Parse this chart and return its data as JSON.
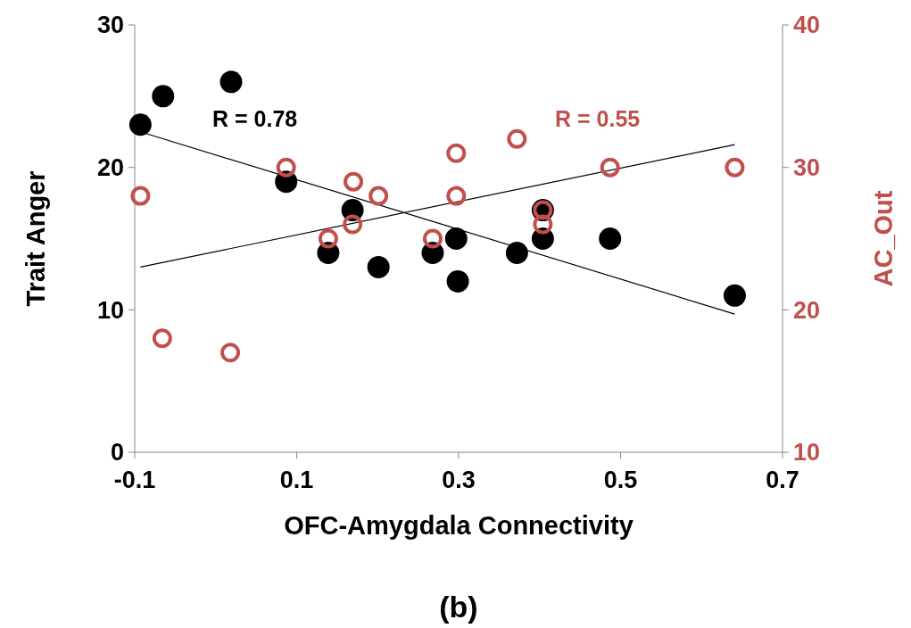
{
  "chart_data": {
    "type": "scatter",
    "xlabel": "OFC-Amygdala Connectivity",
    "ylabel": "Trait Anger",
    "y2label": "AC_Out",
    "xlim": [
      -0.1,
      0.7
    ],
    "xticks": [
      -0.1,
      0.1,
      0.3,
      0.5,
      0.7
    ],
    "ylim": [
      0,
      30
    ],
    "yticks": [
      0,
      10,
      20,
      30
    ],
    "y2lim": [
      10,
      40
    ],
    "y2ticks": [
      10,
      20,
      30,
      40
    ],
    "grid": false,
    "marker": "circle",
    "series": [
      {
        "color": "#000000",
        "x": [
          -0.093,
          -0.065,
          0.019,
          0.087,
          0.139,
          0.169,
          0.201,
          0.268,
          0.297,
          0.299,
          0.372,
          0.404,
          0.404,
          0.487,
          0.641
        ],
        "values": [
          23,
          25,
          26,
          19,
          14,
          17,
          13,
          14,
          15,
          12,
          14,
          15,
          17,
          15,
          11
        ]
      },
      {
        "color": "#c0504d",
        "axis": "y2",
        "x": [
          -0.093,
          -0.066,
          0.018,
          0.087,
          0.139,
          0.169,
          0.17,
          0.201,
          0.268,
          0.297,
          0.297,
          0.372,
          0.404,
          0.404,
          0.487,
          0.641
        ],
        "values": [
          28,
          18,
          17,
          30,
          25,
          26,
          29,
          28,
          25,
          31,
          28,
          32,
          26,
          27,
          30,
          30
        ]
      },
      {
        "type": "line",
        "marker": "none",
        "color": "#000000",
        "x": [
          -0.093,
          0.641
        ],
        "values": [
          22.5,
          9.7
        ]
      },
      {
        "type": "line",
        "marker": "none",
        "color": "#000000",
        "axis": "y2",
        "x": [
          -0.093,
          0.641
        ],
        "values": [
          23.0,
          31.6
        ]
      }
    ],
    "annotations": [
      "R = 0.78",
      "R = 0.55",
      "(b)"
    ]
  }
}
